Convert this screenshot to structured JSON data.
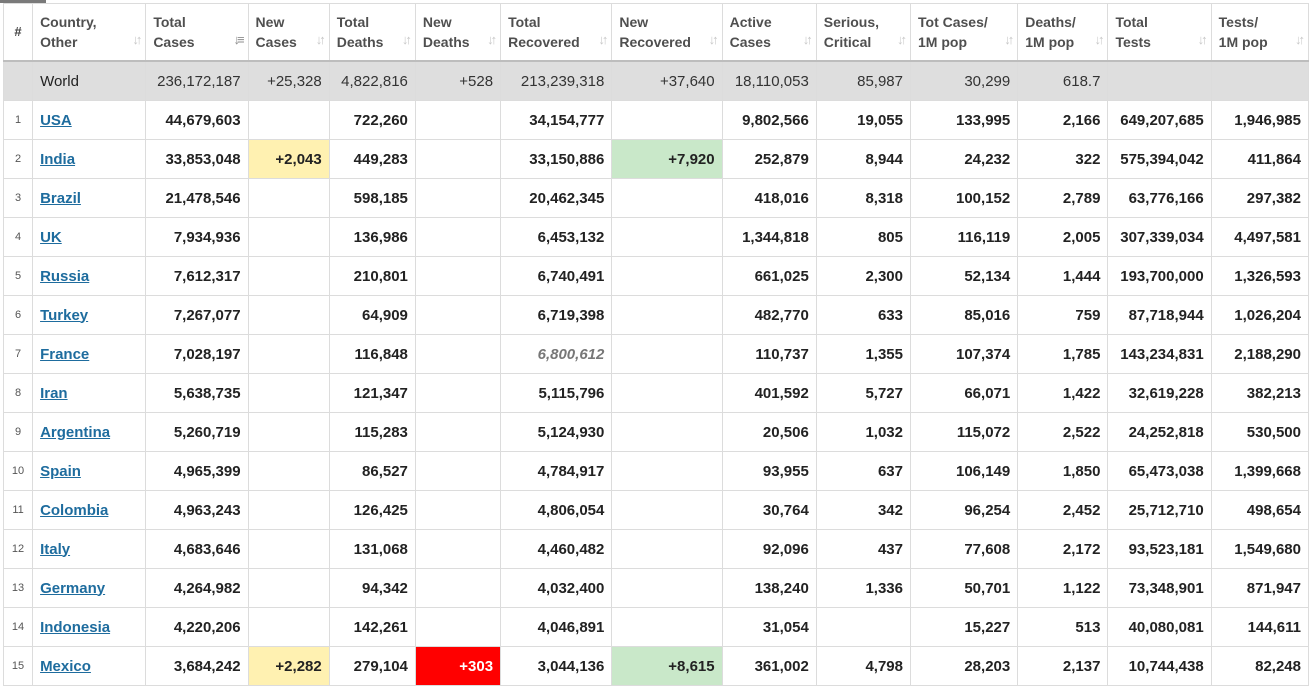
{
  "columns": [
    {
      "line1": "#",
      "line2": ""
    },
    {
      "line1": "Country,",
      "line2": "Other"
    },
    {
      "line1": "Total",
      "line2": "Cases"
    },
    {
      "line1": "New",
      "line2": "Cases"
    },
    {
      "line1": "Total",
      "line2": "Deaths"
    },
    {
      "line1": "New",
      "line2": "Deaths"
    },
    {
      "line1": "Total",
      "line2": "Recovered"
    },
    {
      "line1": "New",
      "line2": "Recovered"
    },
    {
      "line1": "Active",
      "line2": "Cases"
    },
    {
      "line1": "Serious,",
      "line2": "Critical"
    },
    {
      "line1": "Tot Cases/",
      "line2": "1M pop"
    },
    {
      "line1": "Deaths/",
      "line2": "1M pop"
    },
    {
      "line1": "Total",
      "line2": "Tests"
    },
    {
      "line1": "Tests/",
      "line2": "1M pop"
    }
  ],
  "sort_icons": {
    "inactive": "sort-both-icon",
    "active": "sort-descending-icon",
    "active_column": "Total Cases"
  },
  "highlight_colors": {
    "new_cases": "#fff1b1",
    "new_recovered": "#c9e8c9",
    "new_deaths": "#ff0000"
  },
  "world": {
    "country": "World",
    "total_cases": "236,172,187",
    "new_cases": "+25,328",
    "total_deaths": "4,822,816",
    "new_deaths": "+528",
    "total_recovered": "213,239,318",
    "new_recovered": "+37,640",
    "active_cases": "18,110,053",
    "serious": "85,987",
    "cases_per_1m": "30,299",
    "deaths_per_1m": "618.7",
    "total_tests": "",
    "tests_per_1m": ""
  },
  "rows": [
    {
      "num": "1",
      "country": "USA",
      "total_cases": "44,679,603",
      "new_cases": "",
      "total_deaths": "722,260",
      "new_deaths": "",
      "total_recovered": "34,154,777",
      "new_recovered": "",
      "active_cases": "9,802,566",
      "serious": "19,055",
      "cases_per_1m": "133,995",
      "deaths_per_1m": "2,166",
      "total_tests": "649,207,685",
      "tests_per_1m": "1,946,985"
    },
    {
      "num": "2",
      "country": "India",
      "total_cases": "33,853,048",
      "new_cases": "+2,043",
      "total_deaths": "449,283",
      "new_deaths": "",
      "total_recovered": "33,150,886",
      "new_recovered": "+7,920",
      "active_cases": "252,879",
      "serious": "8,944",
      "cases_per_1m": "24,232",
      "deaths_per_1m": "322",
      "total_tests": "575,394,042",
      "tests_per_1m": "411,864"
    },
    {
      "num": "3",
      "country": "Brazil",
      "total_cases": "21,478,546",
      "new_cases": "",
      "total_deaths": "598,185",
      "new_deaths": "",
      "total_recovered": "20,462,345",
      "new_recovered": "",
      "active_cases": "418,016",
      "serious": "8,318",
      "cases_per_1m": "100,152",
      "deaths_per_1m": "2,789",
      "total_tests": "63,776,166",
      "tests_per_1m": "297,382"
    },
    {
      "num": "4",
      "country": "UK",
      "total_cases": "7,934,936",
      "new_cases": "",
      "total_deaths": "136,986",
      "new_deaths": "",
      "total_recovered": "6,453,132",
      "new_recovered": "",
      "active_cases": "1,344,818",
      "serious": "805",
      "cases_per_1m": "116,119",
      "deaths_per_1m": "2,005",
      "total_tests": "307,339,034",
      "tests_per_1m": "4,497,581"
    },
    {
      "num": "5",
      "country": "Russia",
      "total_cases": "7,612,317",
      "new_cases": "",
      "total_deaths": "210,801",
      "new_deaths": "",
      "total_recovered": "6,740,491",
      "new_recovered": "",
      "active_cases": "661,025",
      "serious": "2,300",
      "cases_per_1m": "52,134",
      "deaths_per_1m": "1,444",
      "total_tests": "193,700,000",
      "tests_per_1m": "1,326,593"
    },
    {
      "num": "6",
      "country": "Turkey",
      "total_cases": "7,267,077",
      "new_cases": "",
      "total_deaths": "64,909",
      "new_deaths": "",
      "total_recovered": "6,719,398",
      "new_recovered": "",
      "active_cases": "482,770",
      "serious": "633",
      "cases_per_1m": "85,016",
      "deaths_per_1m": "759",
      "total_tests": "87,718,944",
      "tests_per_1m": "1,026,204"
    },
    {
      "num": "7",
      "country": "France",
      "total_cases": "7,028,197",
      "new_cases": "",
      "total_deaths": "116,848",
      "new_deaths": "",
      "total_recovered": "6,800,612",
      "recovered_italic": true,
      "new_recovered": "",
      "active_cases": "110,737",
      "serious": "1,355",
      "cases_per_1m": "107,374",
      "deaths_per_1m": "1,785",
      "total_tests": "143,234,831",
      "tests_per_1m": "2,188,290"
    },
    {
      "num": "8",
      "country": "Iran",
      "total_cases": "5,638,735",
      "new_cases": "",
      "total_deaths": "121,347",
      "new_deaths": "",
      "total_recovered": "5,115,796",
      "new_recovered": "",
      "active_cases": "401,592",
      "serious": "5,727",
      "cases_per_1m": "66,071",
      "deaths_per_1m": "1,422",
      "total_tests": "32,619,228",
      "tests_per_1m": "382,213"
    },
    {
      "num": "9",
      "country": "Argentina",
      "total_cases": "5,260,719",
      "new_cases": "",
      "total_deaths": "115,283",
      "new_deaths": "",
      "total_recovered": "5,124,930",
      "new_recovered": "",
      "active_cases": "20,506",
      "serious": "1,032",
      "cases_per_1m": "115,072",
      "deaths_per_1m": "2,522",
      "total_tests": "24,252,818",
      "tests_per_1m": "530,500"
    },
    {
      "num": "10",
      "country": "Spain",
      "total_cases": "4,965,399",
      "new_cases": "",
      "total_deaths": "86,527",
      "new_deaths": "",
      "total_recovered": "4,784,917",
      "new_recovered": "",
      "active_cases": "93,955",
      "serious": "637",
      "cases_per_1m": "106,149",
      "deaths_per_1m": "1,850",
      "total_tests": "65,473,038",
      "tests_per_1m": "1,399,668"
    },
    {
      "num": "11",
      "country": "Colombia",
      "total_cases": "4,963,243",
      "new_cases": "",
      "total_deaths": "126,425",
      "new_deaths": "",
      "total_recovered": "4,806,054",
      "new_recovered": "",
      "active_cases": "30,764",
      "serious": "342",
      "cases_per_1m": "96,254",
      "deaths_per_1m": "2,452",
      "total_tests": "25,712,710",
      "tests_per_1m": "498,654"
    },
    {
      "num": "12",
      "country": "Italy",
      "total_cases": "4,683,646",
      "new_cases": "",
      "total_deaths": "131,068",
      "new_deaths": "",
      "total_recovered": "4,460,482",
      "new_recovered": "",
      "active_cases": "92,096",
      "serious": "437",
      "cases_per_1m": "77,608",
      "deaths_per_1m": "2,172",
      "total_tests": "93,523,181",
      "tests_per_1m": "1,549,680"
    },
    {
      "num": "13",
      "country": "Germany",
      "total_cases": "4,264,982",
      "new_cases": "",
      "total_deaths": "94,342",
      "new_deaths": "",
      "total_recovered": "4,032,400",
      "new_recovered": "",
      "active_cases": "138,240",
      "serious": "1,336",
      "cases_per_1m": "50,701",
      "deaths_per_1m": "1,122",
      "total_tests": "73,348,901",
      "tests_per_1m": "871,947"
    },
    {
      "num": "14",
      "country": "Indonesia",
      "total_cases": "4,220,206",
      "new_cases": "",
      "total_deaths": "142,261",
      "new_deaths": "",
      "total_recovered": "4,046,891",
      "new_recovered": "",
      "active_cases": "31,054",
      "serious": "",
      "cases_per_1m": "15,227",
      "deaths_per_1m": "513",
      "total_tests": "40,080,081",
      "tests_per_1m": "144,611"
    },
    {
      "num": "15",
      "country": "Mexico",
      "total_cases": "3,684,242",
      "new_cases": "+2,282",
      "total_deaths": "279,104",
      "new_deaths": "+303",
      "total_recovered": "3,044,136",
      "new_recovered": "+8,615",
      "active_cases": "361,002",
      "serious": "4,798",
      "cases_per_1m": "28,203",
      "deaths_per_1m": "2,137",
      "total_tests": "10,744,438",
      "tests_per_1m": "82,248"
    }
  ]
}
